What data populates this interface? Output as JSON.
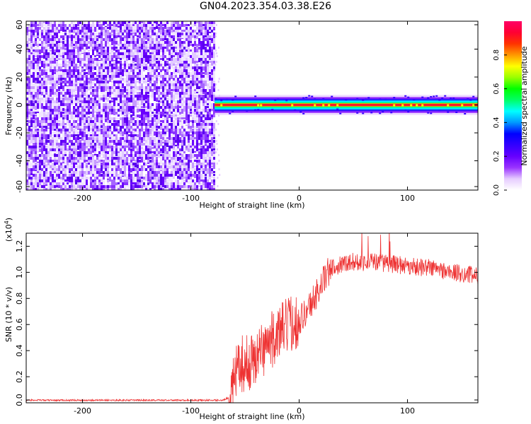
{
  "title": "GN04.2023.354.03.38.E26",
  "chart_data": [
    {
      "type": "heatmap",
      "xlabel": "Height of straight line (km)",
      "ylabel": "Frequency (Hz)",
      "xlim": [
        -252,
        165
      ],
      "ylim": [
        -61,
        60
      ],
      "xticks": [
        -200,
        -100,
        0,
        100
      ],
      "yticks": [
        -60,
        -40,
        -20,
        0,
        20,
        40,
        60
      ],
      "colorbar": {
        "label": "Normalized spectral amplitude",
        "range": [
          0,
          1
        ],
        "ticks": [
          "0.0",
          "0.2",
          "0.4",
          "0.6",
          "0.8"
        ],
        "colors": [
          "#ffffff",
          "#e6ccff",
          "#9933ff",
          "#6600ff",
          "#3300ff",
          "#0000ff",
          "#0099ff",
          "#00ffff",
          "#00ff66",
          "#00ff00",
          "#99ff00",
          "#ffff00",
          "#ff9900",
          "#ff3300",
          "#ff0033",
          "#ff0066"
        ]
      },
      "regions": [
        {
          "x_range": [
            -252,
            -78
          ],
          "y_range": [
            -61,
            60
          ],
          "pattern": "broadband noise",
          "amplitude_range": [
            0.0,
            0.18
          ]
        },
        {
          "x_range": [
            -78,
            165
          ],
          "frequency_center": 0,
          "bandwidth_hz": 6,
          "peak_amplitude": 0.95
        }
      ]
    },
    {
      "type": "line",
      "xlabel": "Height of straight line (km)",
      "ylabel": "SNR (10 * v/v)",
      "yscale_label": "(x10",
      "yscale_exp": "4",
      "xlim": [
        -252,
        165
      ],
      "ylim": [
        0,
        1.3
      ],
      "xticks": [
        -200,
        -100,
        0,
        100
      ],
      "yticks": [
        "0.0",
        "0.2",
        "0.4",
        "0.6",
        "0.8",
        "1.0",
        "1.2"
      ],
      "series": [
        {
          "color": "#ee3333",
          "x": [
            -252,
            -200,
            -150,
            -100,
            -70,
            -63,
            -57,
            -53,
            -47,
            -40,
            -30,
            -20,
            -10,
            0,
            5,
            10,
            15,
            20,
            25,
            30,
            40,
            50,
            60,
            70,
            80,
            90,
            100,
            110,
            120,
            130,
            140,
            150,
            160,
            165
          ],
          "y": [
            0.02,
            0.02,
            0.02,
            0.02,
            0.02,
            0.05,
            0.25,
            0.3,
            0.3,
            0.35,
            0.45,
            0.52,
            0.6,
            0.64,
            0.68,
            0.75,
            0.82,
            0.9,
            0.98,
            1.03,
            1.07,
            1.08,
            1.08,
            1.08,
            1.07,
            1.06,
            1.05,
            1.04,
            1.04,
            1.02,
            1.0,
            0.99,
            0.98,
            0.97
          ]
        }
      ]
    }
  ]
}
